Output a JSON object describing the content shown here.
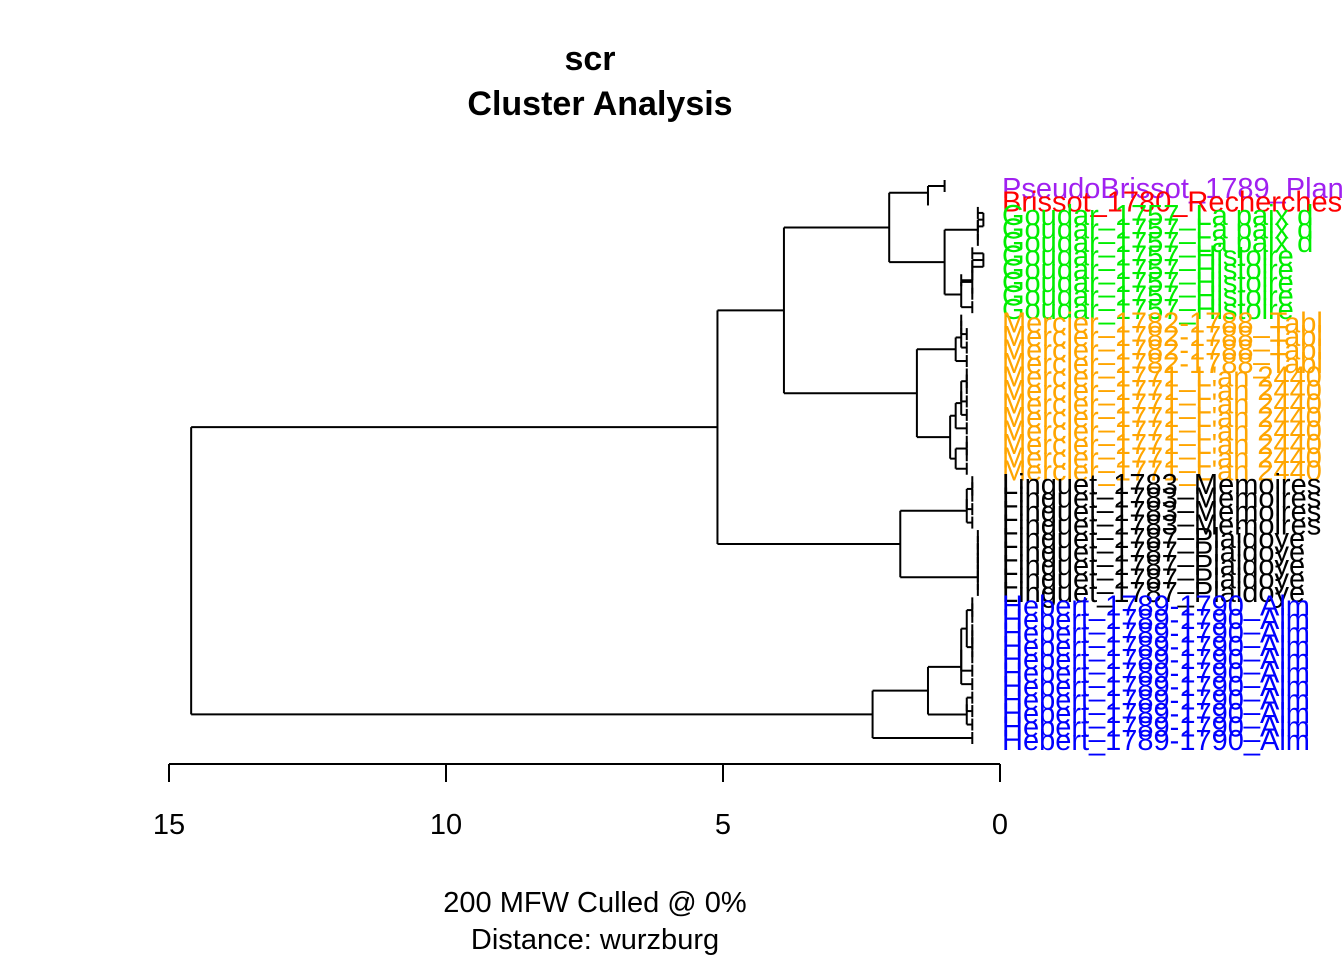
{
  "chart_data": {
    "type": "dendrogram",
    "title": "scr",
    "subtitle": "Cluster Analysis",
    "footer": [
      "200 MFW  Culled @ 0%",
      "Distance: wurzburg"
    ],
    "axis": {
      "ticks": [
        15,
        10,
        5,
        0
      ],
      "range": [
        15,
        0
      ],
      "reversed": true
    },
    "colors": {
      "PseudoBrissot": "#A020F0",
      "Brissot": "#FF0000",
      "Goudar": "#00EE00",
      "Mercier": "#FFA500",
      "Linguet": "#000000",
      "Hebert": "#0000FF"
    },
    "leaves": [
      {
        "label": "PseudoBrissot_1789_Plan",
        "group": "PseudoBrissot",
        "tip": 1.0
      },
      {
        "label": "Brissot_1780_Recherches",
        "group": "Brissot",
        "tip": 1.3
      },
      {
        "label": "Goudar_1757_La paix d",
        "group": "Goudar",
        "tip": 0.4
      },
      {
        "label": "Goudar_1757_La paix d",
        "group": "Goudar",
        "tip": 0.4
      },
      {
        "label": "Goudar_1757_La paix d",
        "group": "Goudar",
        "tip": 0.4
      },
      {
        "label": "Goudar_1757_Histoire",
        "group": "Goudar",
        "tip": 0.5
      },
      {
        "label": "Goudar_1757_Histoire",
        "group": "Goudar",
        "tip": 0.5
      },
      {
        "label": "Goudar_1757_Histoire",
        "group": "Goudar",
        "tip": 0.7
      },
      {
        "label": "Goudar_1757_Histoire",
        "group": "Goudar",
        "tip": 0.5
      },
      {
        "label": "Goudar_1757_Histoire",
        "group": "Goudar",
        "tip": 0.5
      },
      {
        "label": "Mercier_1782-1788_Tabl",
        "group": "Mercier",
        "tip": 0.7
      },
      {
        "label": "Mercier_1782-1788_Tabl",
        "group": "Mercier",
        "tip": 0.6
      },
      {
        "label": "Mercier_1782-1788_Tabl",
        "group": "Mercier",
        "tip": 0.6
      },
      {
        "label": "Mercier_1782-1788_Tabl",
        "group": "Mercier",
        "tip": 0.6
      },
      {
        "label": "Mercier_1771_L'an 2440",
        "group": "Mercier",
        "tip": 0.6
      },
      {
        "label": "Mercier_1771_L'an 2440",
        "group": "Mercier",
        "tip": 0.6
      },
      {
        "label": "Mercier_1771_L'an 2440",
        "group": "Mercier",
        "tip": 0.6
      },
      {
        "label": "Mercier_1771_L'an 2440",
        "group": "Mercier",
        "tip": 0.6
      },
      {
        "label": "Mercier_1771_L'an 2440",
        "group": "Mercier",
        "tip": 0.6
      },
      {
        "label": "Mercier_1771_L'an 2440",
        "group": "Mercier",
        "tip": 0.6
      },
      {
        "label": "Mercier_1771_L'an 2440",
        "group": "Mercier",
        "tip": 0.6
      },
      {
        "label": "Mercier_1771_L'an 2440",
        "group": "Mercier",
        "tip": 0.6
      },
      {
        "label": "Linguet_1783_Memoires",
        "group": "Linguet",
        "tip": 0.5
      },
      {
        "label": "Linguet_1783_Memoires",
        "group": "Linguet",
        "tip": 0.5
      },
      {
        "label": "Linguet_1783_Memoires",
        "group": "Linguet",
        "tip": 0.5
      },
      {
        "label": "Linguet_1783_Memoires",
        "group": "Linguet",
        "tip": 0.5
      },
      {
        "label": "Linguet_1787_Plaidoye",
        "group": "Linguet",
        "tip": 0.4
      },
      {
        "label": "Linguet_1787_Plaidoye",
        "group": "Linguet",
        "tip": 0.4
      },
      {
        "label": "Linguet_1787_Plaidoye",
        "group": "Linguet",
        "tip": 0.4
      },
      {
        "label": "Linguet_1787_Plaidoye",
        "group": "Linguet",
        "tip": 0.4
      },
      {
        "label": "Linguet_1787_Plaidoye",
        "group": "Linguet",
        "tip": 0.4
      },
      {
        "label": "Hebert_1789-1790_Alm",
        "group": "Hebert",
        "tip": 0.5
      },
      {
        "label": "Hebert_1789-1790_Alm",
        "group": "Hebert",
        "tip": 0.5
      },
      {
        "label": "Hebert_1789-1790_Alm",
        "group": "Hebert",
        "tip": 0.5
      },
      {
        "label": "Hebert_1789-1790_Alm",
        "group": "Hebert",
        "tip": 0.5
      },
      {
        "label": "Hebert_1789-1790_Alm",
        "group": "Hebert",
        "tip": 0.5
      },
      {
        "label": "Hebert_1789-1790_Alm",
        "group": "Hebert",
        "tip": 0.5
      },
      {
        "label": "Hebert_1789-1790_Alm",
        "group": "Hebert",
        "tip": 0.5
      },
      {
        "label": "Hebert_1789-1790_Alm",
        "group": "Hebert",
        "tip": 0.5
      },
      {
        "label": "Hebert_1789-1790_Alm",
        "group": "Hebert",
        "tip": 0.5
      },
      {
        "label": "Hebert_1789-1790_Alm",
        "group": "Hebert",
        "tip": 0.5
      },
      {
        "label": "Hebert_1789-1790_Alm",
        "group": "Hebert",
        "tip": 0.5
      }
    ],
    "merges": [
      {
        "a": "L0",
        "b": "L1",
        "h": 1.3
      },
      {
        "a": "L2",
        "b": "L3",
        "h": 0.3
      },
      {
        "a": "M1",
        "b": "L4",
        "h": 0.4
      },
      {
        "a": "L5",
        "b": "L6",
        "h": 0.3
      },
      {
        "a": "M3",
        "b": "L7",
        "h": 0.5
      },
      {
        "a": "M4",
        "b": "L8",
        "h": 0.5
      },
      {
        "a": "M5",
        "b": "L9",
        "h": 0.7
      },
      {
        "a": "M2",
        "b": "M6",
        "h": 1.0
      },
      {
        "a": "M0",
        "b": "M7",
        "h": 2.0
      },
      {
        "a": "L10",
        "b": "L11",
        "h": 0.7
      },
      {
        "a": "M9",
        "b": "L12",
        "h": 0.7
      },
      {
        "a": "M10",
        "b": "L13",
        "h": 0.8
      },
      {
        "a": "L14",
        "b": "L15",
        "h": 0.6
      },
      {
        "a": "M12",
        "b": "L16",
        "h": 0.7
      },
      {
        "a": "M13",
        "b": "L17",
        "h": 0.7
      },
      {
        "a": "M14",
        "b": "L18",
        "h": 0.8
      },
      {
        "a": "L19",
        "b": "L20",
        "h": 0.6
      },
      {
        "a": "M16",
        "b": "L21",
        "h": 0.8
      },
      {
        "a": "M15",
        "b": "M17",
        "h": 0.9
      },
      {
        "a": "M11",
        "b": "M18",
        "h": 1.5
      },
      {
        "a": "M8",
        "b": "M19",
        "h": 3.9
      },
      {
        "a": "L22",
        "b": "L23",
        "h": 0.5
      },
      {
        "a": "M21",
        "b": "L24",
        "h": 0.6
      },
      {
        "a": "M22",
        "b": "L25",
        "h": 0.6
      },
      {
        "a": "L26",
        "b": "L27",
        "h": 0.4
      },
      {
        "a": "M24",
        "b": "L28",
        "h": 0.4
      },
      {
        "a": "M25",
        "b": "L29",
        "h": 0.4
      },
      {
        "a": "M26",
        "b": "L30",
        "h": 0.4
      },
      {
        "a": "M23",
        "b": "M27",
        "h": 1.8
      },
      {
        "a": "M20",
        "b": "M28",
        "h": 5.1
      },
      {
        "a": "L31",
        "b": "L32",
        "h": 0.5
      },
      {
        "a": "L33",
        "b": "L34",
        "h": 0.5
      },
      {
        "a": "M31",
        "b": "L35",
        "h": 0.5
      },
      {
        "a": "M30",
        "b": "M32",
        "h": 0.6
      },
      {
        "a": "M33",
        "b": "L36",
        "h": 0.7
      },
      {
        "a": "M34",
        "b": "L37",
        "h": 0.7
      },
      {
        "a": "L38",
        "b": "L39",
        "h": 0.6
      },
      {
        "a": "M36",
        "b": "L40",
        "h": 0.6
      },
      {
        "a": "M35",
        "b": "M37",
        "h": 1.3
      },
      {
        "a": "M38",
        "b": "L41",
        "h": 2.3
      },
      {
        "a": "M29",
        "b": "M39",
        "h": 14.6
      }
    ]
  }
}
